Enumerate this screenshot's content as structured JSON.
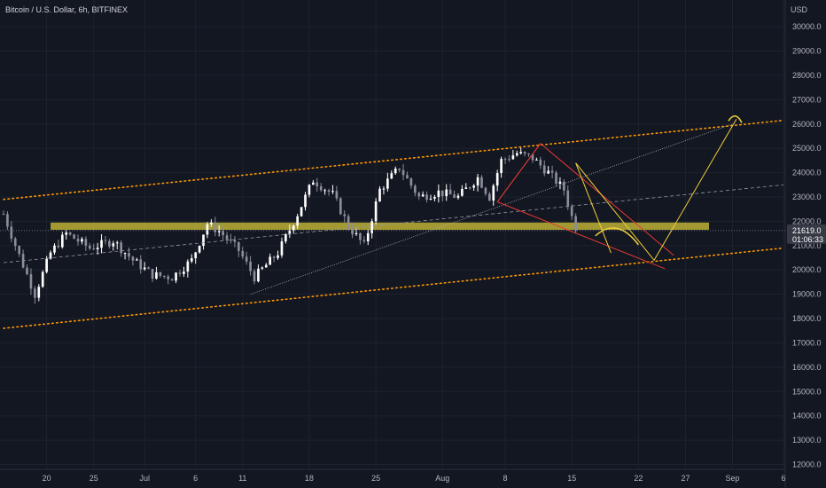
{
  "header": {
    "symbol": "Bitcoin / U.S. Dollar, 6h, BITFINEX"
  },
  "currency": "USD",
  "price_tag": {
    "price": "21619.0",
    "countdown": "01:06:33"
  },
  "colors": {
    "background": "#131722",
    "up": "#ffffff",
    "down": "#8a8e99",
    "channel": "#ff9800",
    "zone": "#d4c63a",
    "projection": "#f2d13b",
    "wedge": "#e53935"
  },
  "chart_data": {
    "type": "candlestick",
    "title": "Bitcoin / U.S. Dollar, 6h, BITFINEX",
    "ylim": [
      11800,
      31100
    ],
    "yticks": [
      12000,
      13000,
      14000,
      15000,
      16000,
      17000,
      18000,
      19000,
      20000,
      21000,
      22000,
      23000,
      24000,
      25000,
      26000,
      27000,
      28000,
      29000,
      30000
    ],
    "ytick_labels": [
      "12000.0",
      "13000.0",
      "14000.0",
      "15000.0",
      "16000.0",
      "17000.0",
      "18000.0",
      "19000.0",
      "20000.0",
      "21000.0",
      "22000.0",
      "23000.0",
      "24000.0",
      "25000.0",
      "26000.0",
      "27000.0",
      "28000.0",
      "29000.0",
      "30000.0"
    ],
    "xticks": [
      "20",
      "25",
      "Jul",
      "6",
      "11",
      "18",
      "25",
      "Aug",
      "8",
      "15",
      "22",
      "27",
      "Sep",
      "6"
    ],
    "close_path": [
      {
        "t": 0,
        "v": 22300
      },
      {
        "t": 4,
        "v": 20600
      },
      {
        "t": 8,
        "v": 19000
      },
      {
        "t": 12,
        "v": 20700
      },
      {
        "t": 16,
        "v": 21500
      },
      {
        "t": 22,
        "v": 20900
      },
      {
        "t": 28,
        "v": 21200
      },
      {
        "t": 33,
        "v": 20400
      },
      {
        "t": 38,
        "v": 19800
      },
      {
        "t": 43,
        "v": 19700
      },
      {
        "t": 48,
        "v": 20400
      },
      {
        "t": 52,
        "v": 21900
      },
      {
        "t": 55,
        "v": 21600
      },
      {
        "t": 60,
        "v": 20800
      },
      {
        "t": 64,
        "v": 19700
      },
      {
        "t": 70,
        "v": 20700
      },
      {
        "t": 75,
        "v": 22300
      },
      {
        "t": 79,
        "v": 23700
      },
      {
        "t": 84,
        "v": 23100
      },
      {
        "t": 88,
        "v": 21800
      },
      {
        "t": 92,
        "v": 21000
      },
      {
        "t": 96,
        "v": 23300
      },
      {
        "t": 101,
        "v": 24200
      },
      {
        "t": 106,
        "v": 23000
      },
      {
        "t": 111,
        "v": 23200
      },
      {
        "t": 116,
        "v": 23000
      },
      {
        "t": 121,
        "v": 23800
      },
      {
        "t": 124,
        "v": 23000
      },
      {
        "t": 127,
        "v": 24500
      },
      {
        "t": 131,
        "v": 24800
      },
      {
        "t": 135,
        "v": 24600
      },
      {
        "t": 139,
        "v": 24000
      },
      {
        "t": 143,
        "v": 23300
      },
      {
        "t": 146,
        "v": 21619
      }
    ],
    "annotations": {
      "channel_upper": [
        {
          "t": 0,
          "v": 22900
        },
        {
          "t": 199,
          "v": 26150
        }
      ],
      "channel_lower": [
        {
          "t": 0,
          "v": 17600
        },
        {
          "t": 199,
          "v": 20900
        }
      ],
      "zone": {
        "t_start": 12,
        "t_end": 180,
        "v_low": 21650,
        "v_high": 21950
      },
      "trendline_up": [
        {
          "t": 63,
          "v": 19000
        },
        {
          "t": 186,
          "v": 26000
        }
      ],
      "trendline_mid": [
        {
          "t": 0,
          "v": 20300
        },
        {
          "t": 199,
          "v": 23500
        }
      ],
      "wedge": [
        {
          "t": 126,
          "v": 22800
        },
        {
          "t": 137,
          "v": 25200
        },
        {
          "t": 171,
          "v": 20600
        },
        {
          "t": 150,
          "v": 21800
        }
      ],
      "projection_arc": {
        "t_start": 151,
        "t_end": 162,
        "v_base": 21400,
        "v_peak": 21800
      },
      "projection_path": [
        {
          "t": 146,
          "v": 24400
        },
        {
          "t": 166,
          "v": 20400
        },
        {
          "t": 187,
          "v": 26200
        }
      ]
    }
  }
}
